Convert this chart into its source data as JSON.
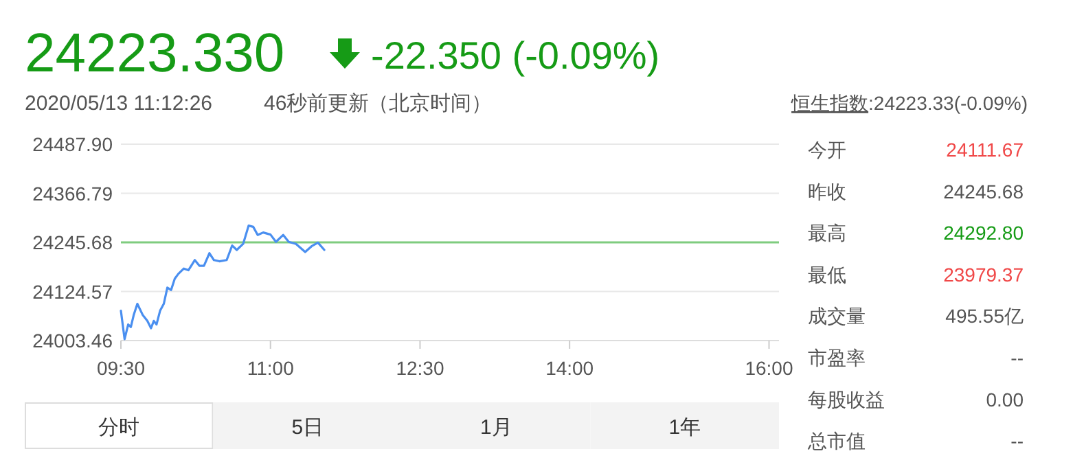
{
  "chart_data": [
    {
      "type": "other",
      "title": "24223.330",
      "subtitle": "-22.350 (-0.09%)",
      "color": "#169b16",
      "annotations": [
        "2020/05/13 11:12:26",
        "46秒前更新",
        "（北京时间）",
        "恒生指数",
        ":24223.33(-0.09%)"
      ]
    },
    {
      "type": "line",
      "xlim": [
        9.5,
        16.1
      ],
      "ylim": [
        24003.46,
        24487.9
      ],
      "xticks": [
        {
          "value": 9.5,
          "label": "09:30"
        },
        {
          "value": 11,
          "label": "11:00"
        },
        {
          "value": 12.5,
          "label": "12:30"
        },
        {
          "value": 14,
          "label": "14:00"
        },
        {
          "value": 16,
          "label": "16:00"
        }
      ],
      "yticks": [
        {
          "value": 24487.9,
          "label": "24487.90"
        },
        24366.79,
        24245.68,
        24124.57,
        24003.46
      ],
      "grid": "y",
      "ref_lines": [
        {
          "axis": "y",
          "value": 24245.68,
          "color": "#7fcc7f"
        }
      ],
      "series": [
        {
          "color": "#4a8ff0",
          "x": [
            9.5,
            9.537,
            9.573,
            9.6,
            9.628,
            9.665,
            9.72,
            9.765,
            9.802,
            9.83,
            9.857,
            9.893,
            9.93,
            9.966,
            10.003,
            10.04,
            10.076,
            10.131,
            10.177,
            10.241,
            10.287,
            10.333,
            10.388,
            10.433,
            10.488,
            10.561,
            10.616,
            10.662,
            10.726,
            10.781,
            10.827,
            10.872,
            10.927,
            11.0,
            11.055,
            11.128,
            11.183,
            11.256,
            11.348,
            11.412,
            11.476,
            11.54
          ],
          "values": [
            24077,
            24007,
            24043,
            24037,
            24066,
            24094,
            24066,
            24052,
            24034,
            24052,
            24043,
            24077,
            24094,
            24134,
            24128,
            24156,
            24168,
            24181,
            24177,
            24202,
            24188,
            24188,
            24219,
            24202,
            24199,
            24202,
            24238,
            24227,
            24242,
            24287,
            24284,
            24264,
            24270,
            24265,
            24247,
            24264,
            24247,
            24242,
            24222,
            24236,
            24245,
            24227
          ]
        }
      ]
    },
    {
      "type": "other",
      "annotations": [
        "分时",
        "5日",
        "1月",
        "1年"
      ]
    },
    {
      "type": "other",
      "categories": [
        "今开",
        "昨收",
        "最高",
        "最低",
        "成交量",
        "市盈率",
        "每股收益",
        "总市值"
      ],
      "value_labels": [
        "24111.67",
        "24245.68",
        "24292.80",
        "23979.37",
        "495.55亿",
        "--",
        "0.00",
        "--"
      ],
      "colors": [
        "#f04848",
        "#555555",
        "#169b16",
        "#f04848",
        "#555555",
        "#555555",
        "#555555",
        "#555555"
      ]
    }
  ]
}
